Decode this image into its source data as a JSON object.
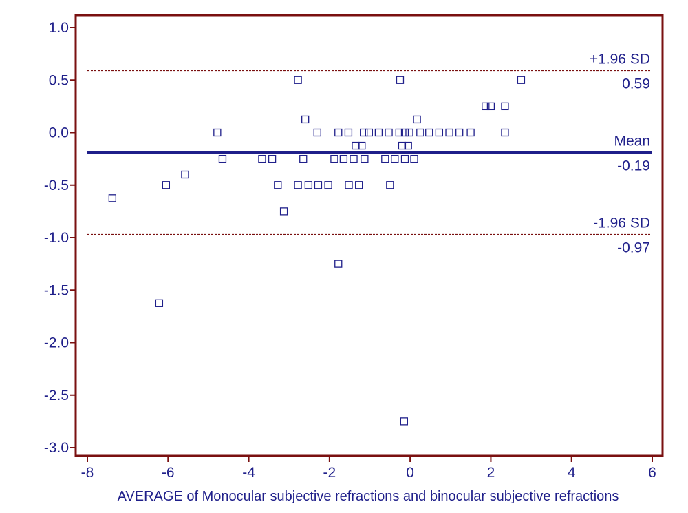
{
  "chart_data": {
    "type": "scatter",
    "title": "",
    "xlabel": "AVERAGE of Monocular subjective refractions  and binocular subjective refractions",
    "ylabel": "",
    "xlim": [
      -8,
      6
    ],
    "ylim": [
      -3.0,
      1.0
    ],
    "x_ticks": [
      -8,
      -6,
      -4,
      -2,
      0,
      2,
      4,
      6
    ],
    "x_tick_labels": [
      "-8",
      "-6",
      "-4",
      "-2",
      "0",
      "2",
      "4",
      "6"
    ],
    "y_ticks": [
      1.0,
      0.5,
      0.0,
      -0.5,
      -1.0,
      -1.5,
      -2.0,
      -2.5,
      -3.0
    ],
    "y_tick_labels": [
      "1.0",
      "0.5",
      "0.0",
      "-0.5",
      "-1.0",
      "-1.5",
      "-2.0",
      "-2.5",
      "-3.0"
    ],
    "reference_lines": [
      {
        "label": "+1.96 SD",
        "value_label": "0.59",
        "y": 0.59,
        "style": "dashed"
      },
      {
        "label": "Mean",
        "value_label": "-0.19",
        "y": -0.19,
        "style": "solid"
      },
      {
        "label": "-1.96 SD",
        "value_label": "-0.97",
        "y": -0.97,
        "style": "dashed"
      }
    ],
    "points": [
      [
        -7.38,
        -0.625
      ],
      [
        -6.22,
        -1.625
      ],
      [
        -6.05,
        -0.5
      ],
      [
        -5.58,
        -0.4
      ],
      [
        -4.78,
        0.0
      ],
      [
        -4.65,
        -0.25
      ],
      [
        -3.67,
        -0.25
      ],
      [
        -3.42,
        -0.25
      ],
      [
        -3.28,
        -0.5
      ],
      [
        -3.13,
        -0.75
      ],
      [
        -2.78,
        0.5
      ],
      [
        -2.78,
        -0.5
      ],
      [
        -2.65,
        -0.25
      ],
      [
        -2.6,
        0.125
      ],
      [
        -2.52,
        -0.5
      ],
      [
        -2.3,
        0.0
      ],
      [
        -2.28,
        -0.5
      ],
      [
        -2.03,
        -0.5
      ],
      [
        -1.88,
        -0.25
      ],
      [
        -1.78,
        0.0
      ],
      [
        -1.78,
        -1.25
      ],
      [
        -1.65,
        -0.25
      ],
      [
        -1.53,
        0.0
      ],
      [
        -1.52,
        -0.5
      ],
      [
        -1.4,
        -0.25
      ],
      [
        -1.35,
        -0.125
      ],
      [
        -1.27,
        -0.5
      ],
      [
        -1.2,
        -0.125
      ],
      [
        -1.15,
        0.0
      ],
      [
        -1.13,
        -0.25
      ],
      [
        -1.02,
        0.0
      ],
      [
        -0.78,
        0.0
      ],
      [
        -0.62,
        -0.25
      ],
      [
        -0.53,
        0.0
      ],
      [
        -0.5,
        -0.5
      ],
      [
        -0.38,
        -0.25
      ],
      [
        -0.27,
        0.0
      ],
      [
        -0.25,
        0.5
      ],
      [
        -0.2,
        -0.125
      ],
      [
        -0.15,
        -2.75
      ],
      [
        -0.13,
        0.0
      ],
      [
        -0.13,
        -0.25
      ],
      [
        -0.05,
        -0.125
      ],
      [
        -0.02,
        0.0
      ],
      [
        0.1,
        -0.25
      ],
      [
        0.17,
        0.125
      ],
      [
        0.25,
        0.0
      ],
      [
        0.47,
        0.0
      ],
      [
        0.72,
        0.0
      ],
      [
        0.97,
        0.0
      ],
      [
        1.22,
        0.0
      ],
      [
        1.5,
        0.0
      ],
      [
        1.87,
        0.25
      ],
      [
        2.0,
        0.25
      ],
      [
        2.35,
        0.25
      ],
      [
        2.35,
        0.0
      ],
      [
        2.75,
        0.5
      ]
    ],
    "colors": {
      "frame": "#7a1010",
      "marker": "#1f1f8a",
      "mean_line": "#1f1f8a",
      "sd_line": "#7a1010",
      "text": "#1f1f8a"
    },
    "grid": false,
    "legend": "none"
  }
}
